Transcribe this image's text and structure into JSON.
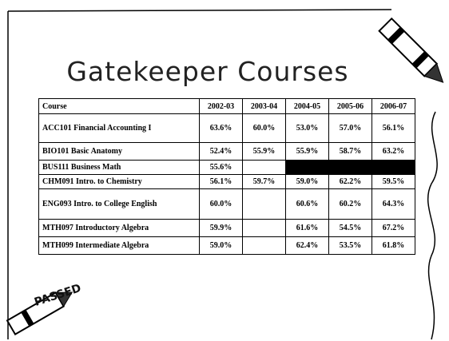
{
  "slide": {
    "title": "Gatekeeper Courses",
    "stamp": "PASSED",
    "table": {
      "header": [
        "Course",
        "2002-03",
        "2003-04",
        "2004-05",
        "2005-06",
        "2006-07"
      ],
      "rows": [
        [
          "ACC101 Financial Accounting I",
          "63.6%",
          "60.0%",
          "53.0%",
          "57.0%",
          "56.1%"
        ],
        [
          "BIO101 Basic Anatomy",
          "52.4%",
          "55.9%",
          "55.9%",
          "58.7%",
          "63.2%"
        ],
        [
          "BUS111 Business Math",
          "55.6%",
          null,
          null,
          null,
          null
        ],
        [
          "CHM091 Intro. to Chemistry",
          "56.1%",
          "59.7%",
          "59.0%",
          "62.2%",
          "59.5%"
        ],
        [
          "ENG093 Intro. to College English",
          "60.0%",
          null,
          "60.6%",
          "60.2%",
          "64.3%"
        ],
        [
          "MTH097 Introductory Algebra",
          "59.9%",
          null,
          "61.6%",
          "54.5%",
          "67.2%"
        ],
        [
          "MTH099 Intermediate Algebra",
          "59.0%",
          null,
          "62.4%",
          "53.5%",
          "61.8%"
        ]
      ],
      "blacked_out_cells": [
        [
          2,
          3
        ],
        [
          2,
          4
        ],
        [
          2,
          5
        ]
      ]
    }
  }
}
